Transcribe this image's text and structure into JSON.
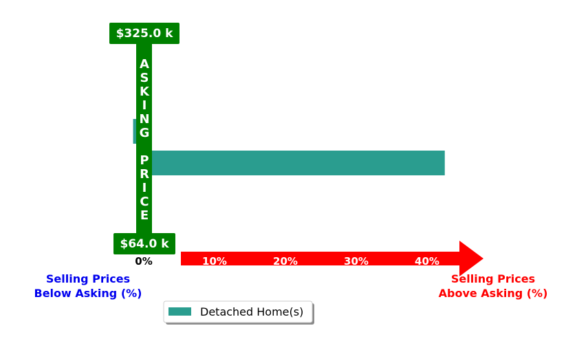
{
  "chart_data": {
    "type": "bar",
    "orientation": "horizontal",
    "series": [
      {
        "name": "Detached Home(s)",
        "color": "#2a9d8f",
        "values": [
          -1.5,
          42.5
        ]
      }
    ],
    "xlim": [
      0,
      47
    ],
    "x_ticks": [
      {
        "value": 0,
        "label": "0%"
      },
      {
        "value": 10,
        "label": "10%"
      },
      {
        "value": 20,
        "label": "20%"
      },
      {
        "value": 30,
        "label": "30%"
      },
      {
        "value": 40,
        "label": "40%"
      }
    ],
    "asking_price_bar": {
      "label": "ASKING PRICE",
      "letters_top": [
        "A",
        "S",
        "K",
        "I",
        "N",
        "G"
      ],
      "letters_bottom": [
        "P",
        "R",
        "I",
        "C",
        "E"
      ],
      "top_price": "$325.0 k",
      "bottom_price": "$64.0 k",
      "color": "#008000"
    },
    "left_label": {
      "line1": "Selling Prices",
      "line2": "Below Asking (%)",
      "color": "#0000ee"
    },
    "right_label": {
      "line1": "Selling Prices",
      "line2": "Above Asking (%)",
      "color": "#ff0000"
    },
    "arrow_color": "#ff0000",
    "legend": {
      "placement": "bottom-center",
      "entries": [
        "Detached Home(s)"
      ]
    },
    "grid": false
  }
}
